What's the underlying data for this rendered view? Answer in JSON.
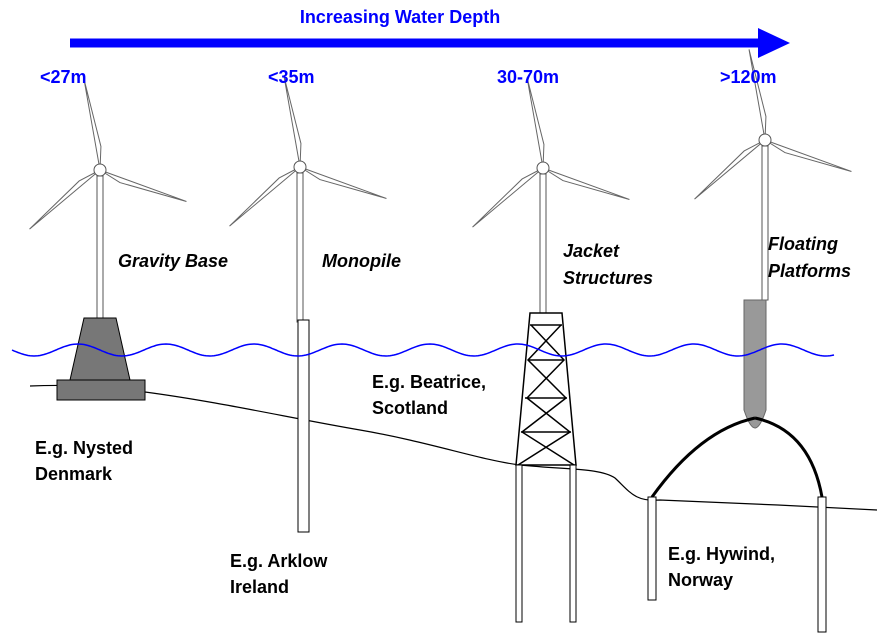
{
  "header": {
    "title": "Increasing Water Depth"
  },
  "foundations": [
    {
      "depth": "<27m",
      "name": [
        "Gravity Base"
      ],
      "example": [
        "E.g. Nysted",
        "Denmark"
      ]
    },
    {
      "depth": "<35m",
      "name": [
        "Monopile"
      ],
      "example": [
        "E.g. Arklow",
        "Ireland"
      ]
    },
    {
      "depth": "30-70m",
      "name": [
        "Jacket",
        "Structures"
      ],
      "example": [
        "E.g. Beatrice,",
        "Scotland"
      ]
    },
    {
      "depth": ">120m",
      "name": [
        "Floating",
        "Platforms"
      ],
      "example": [
        "E.g. Hywind,",
        "Norway"
      ]
    }
  ]
}
